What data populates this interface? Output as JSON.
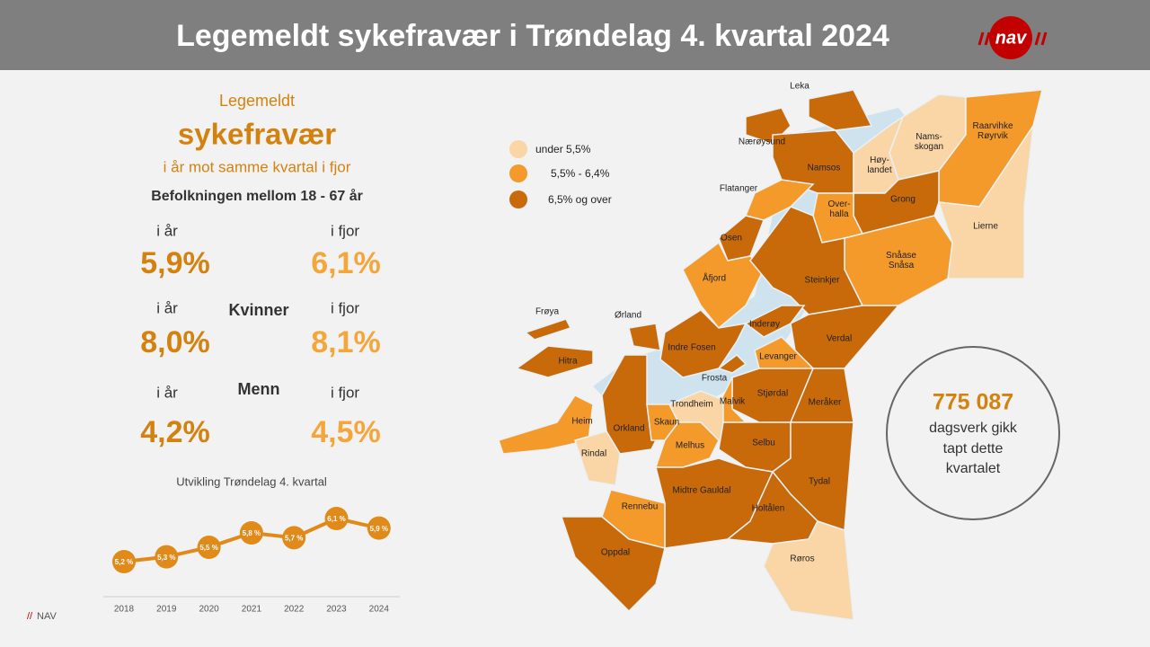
{
  "header": {
    "title": "Legemeldt sykefravær i Trøndelag 4. kvartal 2024",
    "logo": "nav"
  },
  "summary": {
    "line1": "Legemeldt",
    "line2": "sykefravær",
    "line3": "i år mot samme kvartal i fjor",
    "population": "Befolkningen mellom 18 - 67 år",
    "rows": [
      {
        "this_year_label": "i år",
        "this_year": "5,9%",
        "last_year_label": "i fjor",
        "last_year": "6,1%"
      },
      {
        "group": "Kvinner",
        "this_year_label": "i år",
        "this_year": "8,0%",
        "last_year_label": "i fjor",
        "last_year": "8,1%"
      },
      {
        "group": "Menn",
        "this_year_label": "i år",
        "this_year": "4,2%",
        "last_year_label": "i fjor",
        "last_year": "4,5%"
      }
    ]
  },
  "chart_data": {
    "type": "line",
    "title": "Utvikling Trøndelag 4. kvartal",
    "categories": [
      "2018",
      "2019",
      "2020",
      "2021",
      "2022",
      "2023",
      "2024"
    ],
    "values": [
      5.2,
      5.3,
      5.5,
      5.8,
      5.7,
      6.1,
      5.9
    ],
    "value_labels": [
      "5,2 %",
      "5,3 %",
      "5,5 %",
      "5,8 %",
      "5,7 %",
      "6,1 %",
      "5,9 %"
    ],
    "color": "#e08a1a"
  },
  "map": {
    "legend": [
      {
        "label": "under 5,5%",
        "color": "#fad5a5"
      },
      {
        "label": "5,5% - 6,4%",
        "color": "#f39a2b"
      },
      {
        "label": "6,5% og over",
        "color": "#c8690a"
      }
    ],
    "municipalities": [
      {
        "lines": [
          "Leka"
        ],
        "color": "#c8690a"
      },
      {
        "lines": [
          "Nærøysund"
        ],
        "color": "#c8690a"
      },
      {
        "lines": [
          "Namsos"
        ],
        "color": "#c8690a"
      },
      {
        "lines": [
          "Høy-",
          "landet"
        ],
        "color": "#fad5a5"
      },
      {
        "lines": [
          "Nams-",
          "skogan"
        ],
        "color": "#fad5a5"
      },
      {
        "lines": [
          "Raarvihke",
          "Røyrvik"
        ],
        "color": "#f39a2b"
      },
      {
        "lines": [
          "Grong"
        ],
        "color": "#c8690a"
      },
      {
        "lines": [
          "Lierne"
        ],
        "color": "#fad5a5"
      },
      {
        "lines": [
          "Over-",
          "halla"
        ],
        "color": "#f39a2b"
      },
      {
        "lines": [
          "Snåase",
          "Snåsa"
        ],
        "color": "#f39a2b"
      },
      {
        "lines": [
          "Flatanger"
        ],
        "color": "#f39a2b"
      },
      {
        "lines": [
          "Osen"
        ],
        "color": "#c8690a"
      },
      {
        "lines": [
          "Åfjord"
        ],
        "color": "#f39a2b"
      },
      {
        "lines": [
          "Steinkjer"
        ],
        "color": "#c8690a"
      },
      {
        "lines": [
          "Inderøy"
        ],
        "color": "#c8690a"
      },
      {
        "lines": [
          "Verdal"
        ],
        "color": "#c8690a"
      },
      {
        "lines": [
          "Frøya"
        ],
        "color": "#c8690a"
      },
      {
        "lines": [
          "Ørland"
        ],
        "color": "#c8690a"
      },
      {
        "lines": [
          "Indre Fosen"
        ],
        "color": "#c8690a"
      },
      {
        "lines": [
          "Hitra"
        ],
        "color": "#c8690a"
      },
      {
        "lines": [
          "Levanger"
        ],
        "color": "#f39a2b"
      },
      {
        "lines": [
          "Frosta"
        ],
        "color": "#c8690a"
      },
      {
        "lines": [
          "Stjørdal"
        ],
        "color": "#c8690a"
      },
      {
        "lines": [
          "Meråker"
        ],
        "color": "#c8690a"
      },
      {
        "lines": [
          "Malvik"
        ],
        "color": "#f39a2b"
      },
      {
        "lines": [
          "Trondheim"
        ],
        "color": "#fad5a5"
      },
      {
        "lines": [
          "Heim"
        ],
        "color": "#f39a2b"
      },
      {
        "lines": [
          "Orkland"
        ],
        "color": "#c8690a"
      },
      {
        "lines": [
          "Skaun"
        ],
        "color": "#f39a2b"
      },
      {
        "lines": [
          "Melhus"
        ],
        "color": "#f39a2b"
      },
      {
        "lines": [
          "Selbu"
        ],
        "color": "#c8690a"
      },
      {
        "lines": [
          "Rindal"
        ],
        "color": "#c8690a"
      },
      {
        "lines": [
          "Tydal"
        ],
        "color": "#fad5a5"
      },
      {
        "lines": [
          "Midtre Gauldal"
        ],
        "color": "#c8690a"
      },
      {
        "lines": [
          "Holtålen"
        ],
        "color": "#c8690a"
      },
      {
        "lines": [
          "Rennebu"
        ],
        "color": "#f39a2b"
      },
      {
        "lines": [
          "Oppdal"
        ],
        "color": "#c8690a"
      },
      {
        "lines": [
          "Røros"
        ],
        "color": "#fad5a5"
      }
    ]
  },
  "callout": {
    "number": "775 087",
    "lines": [
      "dagsverk gikk",
      "tapt dette",
      "kvartalet"
    ]
  },
  "footer": {
    "mark": "//",
    "text": "NAV"
  }
}
